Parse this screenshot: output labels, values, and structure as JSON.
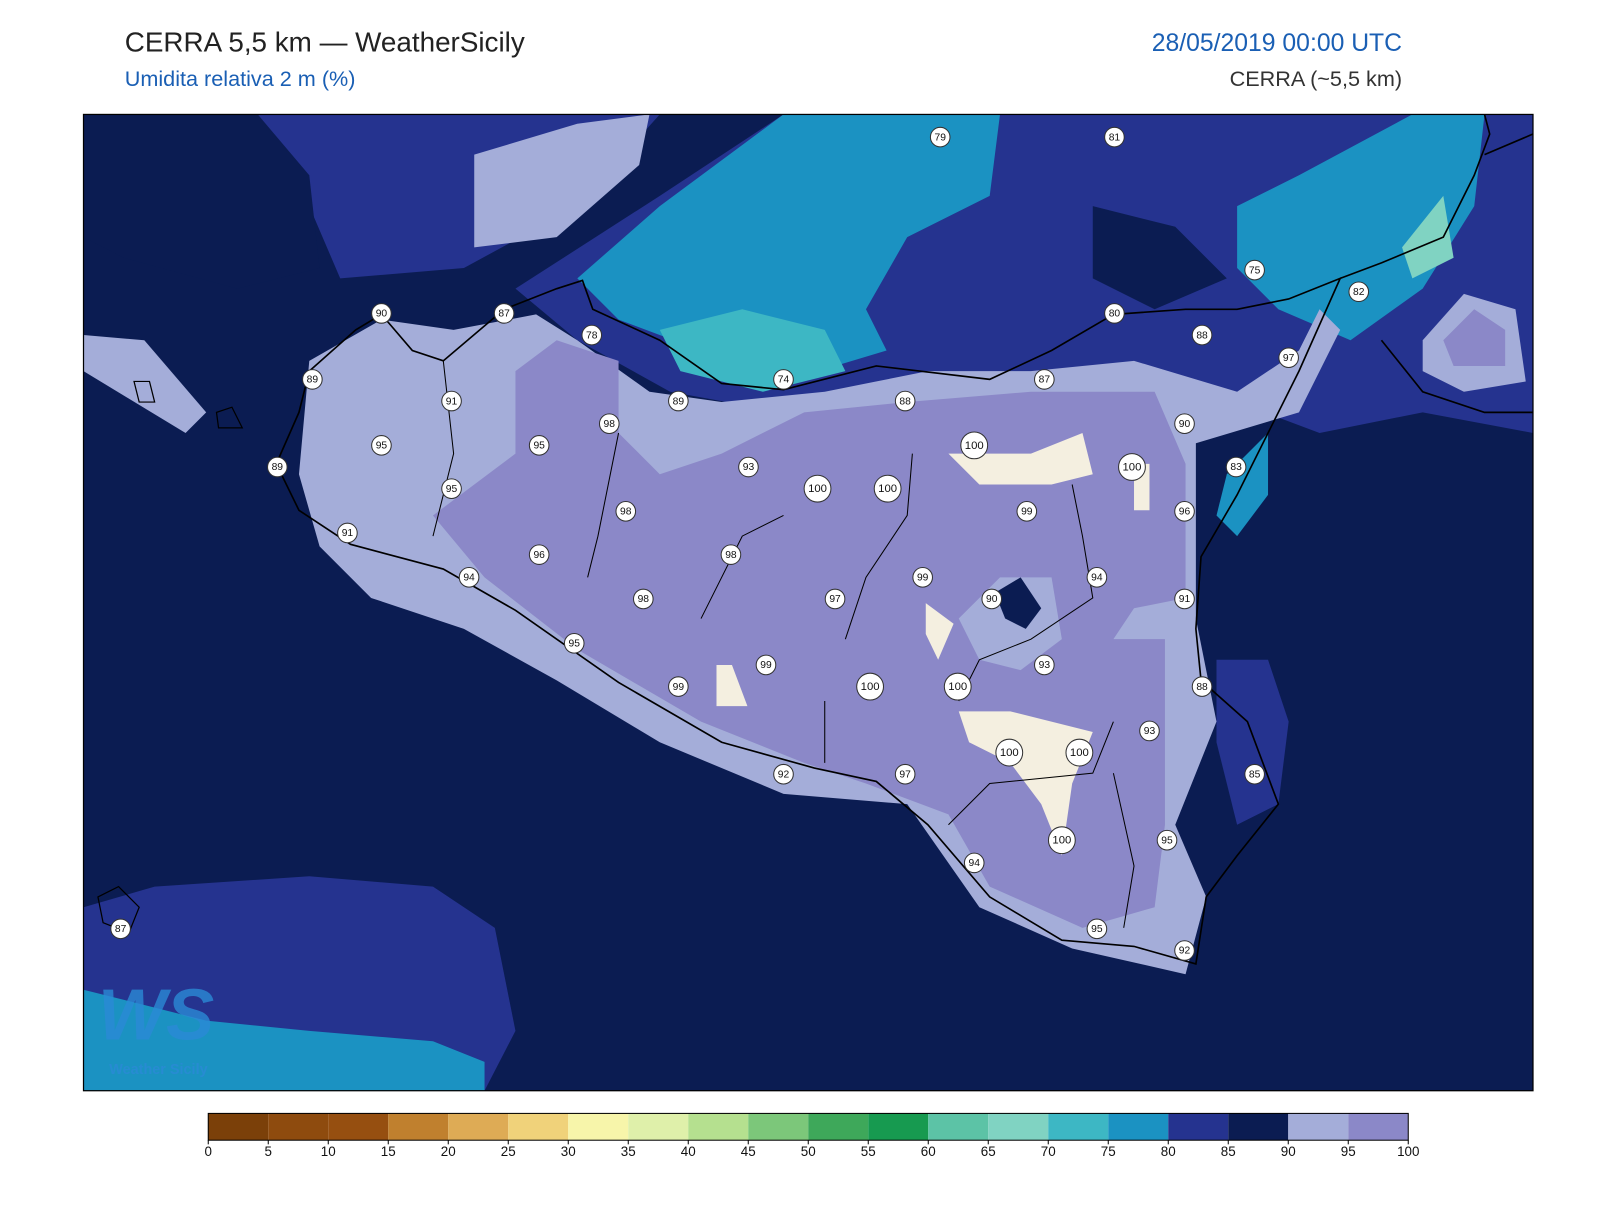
{
  "header": {
    "title": "CERRA 5,5 km — WeatherSicily",
    "subtitle": "Umidita relativa 2 m (%)",
    "datetime": "28/05/2019 00:00 UTC",
    "model": "CERRA (~5,5 km)"
  },
  "stations": [
    79,
    81,
    75,
    82,
    90,
    87,
    78,
    80,
    88,
    97,
    89,
    74,
    87,
    91,
    89,
    88,
    98,
    90,
    95,
    95,
    100,
    100,
    89,
    93,
    83,
    95,
    100,
    100,
    98,
    99,
    96,
    91,
    96,
    98,
    94,
    99,
    94,
    98,
    97,
    90,
    91,
    95,
    93,
    99,
    99,
    100,
    100,
    88,
    93,
    100,
    100,
    92,
    97,
    85,
    95,
    100,
    94,
    87,
    95,
    92
  ],
  "colorbar": {
    "ticks": [
      0,
      5,
      10,
      15,
      20,
      25,
      30,
      35,
      40,
      45,
      50,
      55,
      60,
      65,
      70,
      75,
      80,
      85,
      90,
      95,
      100
    ],
    "colors": [
      "#7b4009",
      "#8e4b0e",
      "#964f10",
      "#c0802e",
      "#deab55",
      "#f0d27a",
      "#f7f5aa",
      "#dff0aa",
      "#b5e08f",
      "#7cc77a",
      "#3ea85a",
      "#179a50",
      "#5cc3a6",
      "#80d3c2",
      "#3db7c4",
      "#1b92c2",
      "#25338f",
      "#0b1c52",
      "#a4add9",
      "#8b88c8"
    ]
  },
  "logo": {
    "mark": "WS",
    "name": "Weather Sicily"
  }
}
